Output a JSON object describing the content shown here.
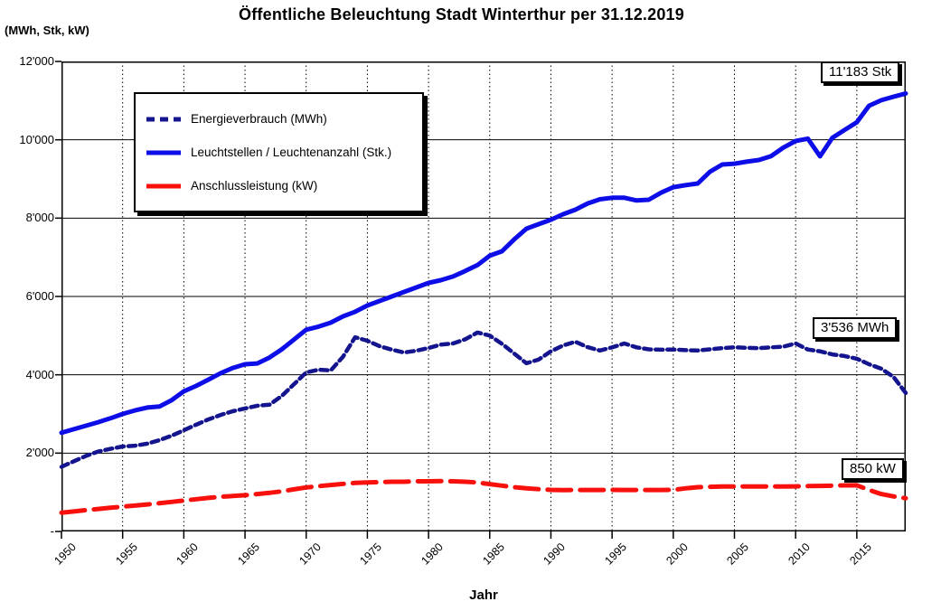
{
  "title": "Öffentliche Beleuchtung Stadt Winterthur per 31.12.2019",
  "y_axis_unit_label": "(MWh, Stk, kW)",
  "x_axis_label": "Jahr",
  "colors": {
    "energieverbrauch": "#14148F",
    "leuchtstellen": "#0D0DE8",
    "anschlussleistung": "#F8100D",
    "grid": "#000000"
  },
  "legend": {
    "items": [
      {
        "label": "Energieverbrauch (MWh)",
        "color": "#14148F",
        "dash": "9 6"
      },
      {
        "label": "Leuchtstellen / Leuchtenanzahl (Stk.)",
        "color": "#0D0DE8",
        "dash": ""
      },
      {
        "label": "Anschlussleistung (kW)",
        "color": "#F8100D",
        "dash": ""
      }
    ]
  },
  "annotations": {
    "stk": {
      "text": "11'183 Stk"
    },
    "mwh": {
      "text": "3'536 MWh"
    },
    "kw": {
      "text": "850 kW"
    }
  },
  "chart_data": {
    "type": "line",
    "title": "Öffentliche Beleuchtung Stadt Winterthur per 31.12.2019",
    "xlabel": "Jahr",
    "ylabel": "(MWh, Stk, kW)",
    "xlim": [
      1950,
      2019
    ],
    "ylim": [
      0,
      12000
    ],
    "grid": {
      "horizontal": "solid every 2000",
      "vertical": "dotted every 5 years"
    },
    "legend_position": "top-left inside plot",
    "y_ticks": [
      {
        "value": 12000,
        "label": "12'000"
      },
      {
        "value": 10000,
        "label": "10'000"
      },
      {
        "value": 8000,
        "label": "8'000"
      },
      {
        "value": 6000,
        "label": "6'000"
      },
      {
        "value": 4000,
        "label": "4'000"
      },
      {
        "value": 2000,
        "label": "2'000"
      },
      {
        "value": 0,
        "label": "-"
      }
    ],
    "x_ticks": [
      {
        "value": 1950,
        "label": "1950"
      },
      {
        "value": 1955,
        "label": "1955"
      },
      {
        "value": 1960,
        "label": "1960"
      },
      {
        "value": 1965,
        "label": "1965"
      },
      {
        "value": 1970,
        "label": "1970"
      },
      {
        "value": 1975,
        "label": "1975"
      },
      {
        "value": 1980,
        "label": "1980"
      },
      {
        "value": 1985,
        "label": "1985"
      },
      {
        "value": 1990,
        "label": "1990"
      },
      {
        "value": 1995,
        "label": "1995"
      },
      {
        "value": 2000,
        "label": "2000"
      },
      {
        "value": 2005,
        "label": "2005"
      },
      {
        "value": 2010,
        "label": "2010"
      },
      {
        "value": 2015,
        "label": "2015"
      }
    ],
    "y_gridlines": [
      2000,
      4000,
      6000,
      8000,
      10000
    ],
    "x_gridlines": [
      1955,
      1960,
      1965,
      1970,
      1975,
      1980,
      1985,
      1990,
      1995,
      2000,
      2005,
      2010,
      2015
    ],
    "x": [
      1950,
      1951,
      1952,
      1953,
      1954,
      1955,
      1956,
      1957,
      1958,
      1959,
      1960,
      1961,
      1962,
      1963,
      1964,
      1965,
      1966,
      1967,
      1968,
      1969,
      1970,
      1971,
      1972,
      1973,
      1974,
      1975,
      1976,
      1977,
      1978,
      1979,
      1980,
      1981,
      1982,
      1983,
      1984,
      1985,
      1986,
      1987,
      1988,
      1989,
      1990,
      1991,
      1992,
      1993,
      1994,
      1995,
      1996,
      1997,
      1998,
      1999,
      2000,
      2001,
      2002,
      2003,
      2004,
      2005,
      2006,
      2007,
      2008,
      2009,
      2010,
      2011,
      2012,
      2013,
      2014,
      2015,
      2016,
      2017,
      2018,
      2019
    ],
    "series": [
      {
        "name": "Energieverbrauch (MWh)",
        "color": "#14148F",
        "width": 4.5,
        "dash": "8 5",
        "final_value_label": "3'536 MWh",
        "values": [
          1650,
          1790,
          1930,
          2040,
          2110,
          2170,
          2190,
          2240,
          2330,
          2445,
          2585,
          2725,
          2860,
          2975,
          3070,
          3140,
          3210,
          3235,
          3460,
          3760,
          4060,
          4130,
          4110,
          4455,
          4960,
          4870,
          4730,
          4640,
          4570,
          4615,
          4685,
          4770,
          4800,
          4905,
          5080,
          5000,
          4790,
          4545,
          4295,
          4390,
          4600,
          4750,
          4845,
          4705,
          4620,
          4700,
          4800,
          4700,
          4650,
          4640,
          4645,
          4630,
          4620,
          4650,
          4680,
          4700,
          4690,
          4680,
          4700,
          4720,
          4800,
          4645,
          4600,
          4520,
          4480,
          4410,
          4270,
          4155,
          3945,
          3536
        ]
      },
      {
        "name": "Leuchtstellen / Leuchtenanzahl (Stk.)",
        "color": "#0D0DE8",
        "width": 5,
        "dash": "",
        "final_value_label": "11'183 Stk",
        "values": [
          2520,
          2610,
          2700,
          2790,
          2890,
          3000,
          3090,
          3165,
          3190,
          3350,
          3580,
          3715,
          3875,
          4040,
          4175,
          4270,
          4290,
          4440,
          4650,
          4900,
          5150,
          5230,
          5330,
          5490,
          5610,
          5770,
          5885,
          6000,
          6115,
          6230,
          6345,
          6415,
          6510,
          6650,
          6800,
          7040,
          7155,
          7455,
          7730,
          7845,
          7960,
          8100,
          8215,
          8375,
          8480,
          8520,
          8520,
          8450,
          8470,
          8650,
          8790,
          8840,
          8885,
          9185,
          9370,
          9390,
          9440,
          9485,
          9585,
          9800,
          9970,
          10030,
          9580,
          10050,
          10250,
          10450,
          10870,
          11010,
          11100,
          11183
        ]
      },
      {
        "name": "Anschlussleistung (kW)",
        "color": "#F8100D",
        "width": 5,
        "dash": "26 10",
        "final_value_label": "850 kW",
        "values": [
          480,
          510,
          545,
          575,
          605,
          635,
          660,
          690,
          720,
          755,
          790,
          825,
          855,
          885,
          905,
          925,
          955,
          985,
          1025,
          1075,
          1125,
          1155,
          1185,
          1215,
          1240,
          1250,
          1260,
          1270,
          1270,
          1280,
          1280,
          1285,
          1280,
          1270,
          1250,
          1210,
          1170,
          1130,
          1100,
          1080,
          1062,
          1055,
          1060,
          1060,
          1060,
          1062,
          1060,
          1060,
          1060,
          1060,
          1062,
          1100,
          1130,
          1140,
          1148,
          1150,
          1150,
          1150,
          1150,
          1150,
          1152,
          1158,
          1162,
          1170,
          1178,
          1180,
          1060,
          955,
          895,
          850
        ]
      }
    ]
  }
}
